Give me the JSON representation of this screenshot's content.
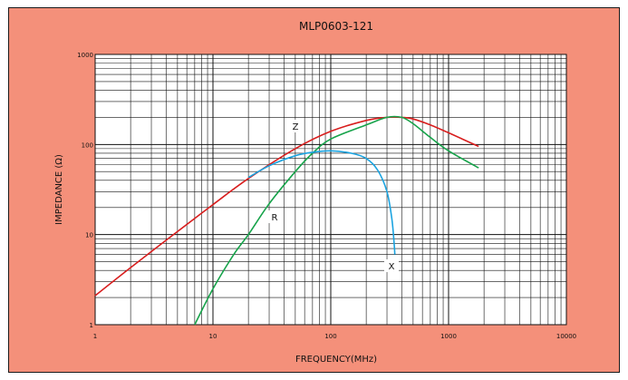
{
  "chart_data": {
    "type": "line",
    "title": "MLP0603-121",
    "xlabel": "FREQUENCY(MHz)",
    "ylabel": "IMPEDANCE (Ω)",
    "x_scale": "log",
    "y_scale": "log",
    "xlim": [
      1,
      10000
    ],
    "ylim": [
      1,
      1000
    ],
    "grid": true,
    "x_ticks": [
      "1",
      "10",
      "100",
      "1000",
      "10000"
    ],
    "y_ticks": [
      "1",
      "10",
      "100",
      "1000"
    ],
    "colors": {
      "Z": "#d81e1e",
      "R": "#16a34a",
      "X": "#1aa3e0",
      "background": "#f4907a",
      "plot": "#ffffff"
    },
    "series": [
      {
        "name": "Z",
        "x": [
          1,
          2,
          5,
          10,
          20,
          50,
          100,
          200,
          300,
          400,
          500,
          700,
          1000,
          1800
        ],
        "y": [
          2.1,
          4.3,
          10.8,
          21.5,
          42,
          90,
          140,
          185,
          200,
          200,
          192,
          165,
          135,
          95
        ]
      },
      {
        "name": "R",
        "x": [
          7,
          10,
          15,
          20,
          30,
          50,
          70,
          100,
          200,
          300,
          400,
          500,
          700,
          1000,
          1800
        ],
        "y": [
          1,
          2.5,
          6,
          10,
          22,
          50,
          80,
          115,
          165,
          200,
          200,
          170,
          120,
          85,
          55
        ]
      },
      {
        "name": "X",
        "x": [
          20,
          30,
          50,
          70,
          100,
          150,
          200,
          250,
          300,
          330,
          345,
          350
        ],
        "y": [
          43,
          58,
          75,
          82,
          85,
          80,
          70,
          52,
          30,
          15,
          8,
          6
        ]
      }
    ]
  }
}
